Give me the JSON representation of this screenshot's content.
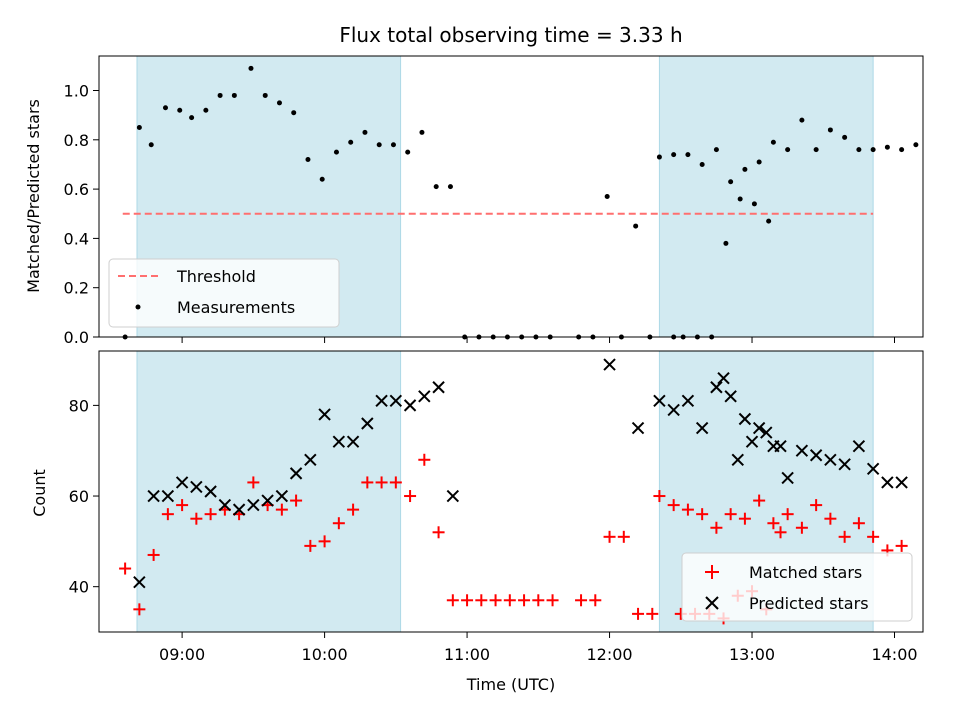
{
  "chart_data": [
    {
      "type": "scatter",
      "title": "Flux total observing time = 3.33 h",
      "xlabel": "",
      "ylabel": "Matched/Predicted stars",
      "ylim": [
        0,
        1.14
      ],
      "xlim": [
        "08:25",
        "14:12"
      ],
      "yticks": [
        "0.0",
        "0.2",
        "0.4",
        "0.6",
        "0.8",
        "1.0"
      ],
      "shaded_intervals": [
        [
          "08:41",
          "10:32"
        ],
        [
          "12:21",
          "13:51"
        ]
      ],
      "shade_color": "#add8e6",
      "threshold": {
        "name": "Threshold",
        "value": 0.5,
        "x_range": [
          "08:35",
          "13:51"
        ],
        "color": "#ff6f6f"
      },
      "series": [
        {
          "name": "Measurements",
          "color": "#000000",
          "points": [
            [
              "08:36",
              0.0
            ],
            [
              "08:42",
              0.85
            ],
            [
              "08:47",
              0.78
            ],
            [
              "08:53",
              0.93
            ],
            [
              "08:59",
              0.92
            ],
            [
              "09:04",
              0.89
            ],
            [
              "09:10",
              0.92
            ],
            [
              "09:16",
              0.98
            ],
            [
              "09:22",
              0.98
            ],
            [
              "09:29",
              1.09
            ],
            [
              "09:35",
              0.98
            ],
            [
              "09:41",
              0.95
            ],
            [
              "09:47",
              0.91
            ],
            [
              "09:53",
              0.72
            ],
            [
              "09:59",
              0.64
            ],
            [
              "10:05",
              0.75
            ],
            [
              "10:11",
              0.79
            ],
            [
              "10:17",
              0.83
            ],
            [
              "10:23",
              0.78
            ],
            [
              "10:29",
              0.78
            ],
            [
              "10:35",
              0.75
            ],
            [
              "10:41",
              0.83
            ],
            [
              "10:47",
              0.61
            ],
            [
              "10:53",
              0.61
            ],
            [
              "10:59",
              0.0
            ],
            [
              "11:05",
              0.0
            ],
            [
              "11:11",
              0.0
            ],
            [
              "11:17",
              0.0
            ],
            [
              "11:23",
              0.0
            ],
            [
              "11:29",
              0.0
            ],
            [
              "11:35",
              0.0
            ],
            [
              "11:47",
              0.0
            ],
            [
              "11:53",
              0.0
            ],
            [
              "11:59",
              0.57
            ],
            [
              "12:05",
              0.0
            ],
            [
              "12:11",
              0.45
            ],
            [
              "12:17",
              0.0
            ],
            [
              "12:27",
              0.0
            ],
            [
              "12:31",
              0.0
            ],
            [
              "12:37",
              0.0
            ],
            [
              "12:43",
              0.0
            ],
            [
              "12:49",
              0.38
            ],
            [
              "12:55",
              0.56
            ],
            [
              "13:01",
              0.54
            ],
            [
              "13:07",
              0.47
            ],
            [
              "12:21",
              0.73
            ],
            [
              "12:27",
              0.74
            ],
            [
              "12:33",
              0.74
            ],
            [
              "12:39",
              0.7
            ],
            [
              "12:45",
              0.76
            ],
            [
              "12:51",
              0.63
            ],
            [
              "12:57",
              0.68
            ],
            [
              "13:03",
              0.71
            ],
            [
              "13:09",
              0.79
            ],
            [
              "13:15",
              0.76
            ],
            [
              "13:21",
              0.88
            ],
            [
              "13:27",
              0.76
            ],
            [
              "13:33",
              0.84
            ],
            [
              "13:39",
              0.81
            ],
            [
              "13:45",
              0.76
            ],
            [
              "13:51",
              0.76
            ],
            [
              "13:57",
              0.77
            ],
            [
              "14:03",
              0.76
            ],
            [
              "14:09",
              0.78
            ]
          ]
        }
      ],
      "legend": {
        "placement": "lower-left"
      }
    },
    {
      "type": "scatter",
      "title": "",
      "xlabel": "Time (UTC)",
      "ylabel": "Count",
      "ylim": [
        30,
        92
      ],
      "xlim": [
        "08:25",
        "14:12"
      ],
      "xticks": [
        "09:00",
        "10:00",
        "11:00",
        "12:00",
        "13:00",
        "14:00"
      ],
      "yticks": [
        "40",
        "60",
        "80"
      ],
      "shaded_intervals": [
        [
          "08:41",
          "10:32"
        ],
        [
          "12:21",
          "13:51"
        ]
      ],
      "series": [
        {
          "name": "Matched stars",
          "marker": "plus",
          "color": "#ff0000",
          "points": [
            [
              "08:36",
              44
            ],
            [
              "08:42",
              35
            ],
            [
              "08:48",
              47
            ],
            [
              "08:54",
              56
            ],
            [
              "09:00",
              58
            ],
            [
              "09:06",
              55
            ],
            [
              "09:12",
              56
            ],
            [
              "09:18",
              57
            ],
            [
              "09:24",
              56
            ],
            [
              "09:30",
              63
            ],
            [
              "09:36",
              58
            ],
            [
              "09:42",
              57
            ],
            [
              "09:48",
              59
            ],
            [
              "09:54",
              49
            ],
            [
              "10:00",
              50
            ],
            [
              "10:06",
              54
            ],
            [
              "10:12",
              57
            ],
            [
              "10:18",
              63
            ],
            [
              "10:24",
              63
            ],
            [
              "10:30",
              63
            ],
            [
              "10:36",
              60
            ],
            [
              "10:42",
              68
            ],
            [
              "10:48",
              52
            ],
            [
              "10:54",
              37
            ],
            [
              "11:00",
              37
            ],
            [
              "11:06",
              37
            ],
            [
              "11:12",
              37
            ],
            [
              "11:18",
              37
            ],
            [
              "11:24",
              37
            ],
            [
              "11:30",
              37
            ],
            [
              "11:36",
              37
            ],
            [
              "11:48",
              37
            ],
            [
              "11:54",
              37
            ],
            [
              "12:00",
              51
            ],
            [
              "12:06",
              51
            ],
            [
              "12:12",
              34
            ],
            [
              "12:18",
              34
            ],
            [
              "12:30",
              34
            ],
            [
              "12:36",
              34
            ],
            [
              "12:42",
              34
            ],
            [
              "12:48",
              33
            ],
            [
              "12:54",
              38
            ],
            [
              "13:00",
              39
            ],
            [
              "13:06",
              35
            ],
            [
              "13:12",
              52
            ],
            [
              "12:21",
              60
            ],
            [
              "12:27",
              58
            ],
            [
              "12:33",
              57
            ],
            [
              "12:39",
              56
            ],
            [
              "12:45",
              53
            ],
            [
              "12:51",
              56
            ],
            [
              "12:57",
              55
            ],
            [
              "13:03",
              59
            ],
            [
              "13:09",
              54
            ],
            [
              "13:15",
              56
            ],
            [
              "13:21",
              53
            ],
            [
              "13:27",
              58
            ],
            [
              "13:33",
              55
            ],
            [
              "13:39",
              51
            ],
            [
              "13:45",
              54
            ],
            [
              "13:51",
              51
            ],
            [
              "13:57",
              48
            ],
            [
              "14:03",
              49
            ]
          ]
        },
        {
          "name": "Predicted stars",
          "marker": "x",
          "color": "#000000",
          "points": [
            [
              "08:42",
              41
            ],
            [
              "08:48",
              60
            ],
            [
              "08:54",
              60
            ],
            [
              "09:00",
              63
            ],
            [
              "09:06",
              62
            ],
            [
              "09:12",
              61
            ],
            [
              "09:18",
              58
            ],
            [
              "09:24",
              57
            ],
            [
              "09:30",
              58
            ],
            [
              "09:36",
              59
            ],
            [
              "09:42",
              60
            ],
            [
              "09:48",
              65
            ],
            [
              "09:54",
              68
            ],
            [
              "10:00",
              78
            ],
            [
              "10:06",
              72
            ],
            [
              "10:12",
              72
            ],
            [
              "10:18",
              76
            ],
            [
              "10:24",
              81
            ],
            [
              "10:30",
              81
            ],
            [
              "10:36",
              80
            ],
            [
              "10:42",
              82
            ],
            [
              "10:48",
              84
            ],
            [
              "10:54",
              60
            ],
            [
              "12:00",
              89
            ],
            [
              "12:12",
              75
            ],
            [
              "12:48",
              86
            ],
            [
              "12:54",
              68
            ],
            [
              "13:00",
              72
            ],
            [
              "13:06",
              74
            ],
            [
              "13:12",
              71
            ],
            [
              "12:21",
              81
            ],
            [
              "12:27",
              79
            ],
            [
              "12:33",
              81
            ],
            [
              "12:39",
              75
            ],
            [
              "12:45",
              84
            ],
            [
              "12:51",
              82
            ],
            [
              "12:57",
              77
            ],
            [
              "13:03",
              75
            ],
            [
              "13:09",
              71
            ],
            [
              "13:15",
              64
            ],
            [
              "13:21",
              70
            ],
            [
              "13:27",
              69
            ],
            [
              "13:33",
              68
            ],
            [
              "13:39",
              67
            ],
            [
              "13:45",
              71
            ],
            [
              "13:51",
              66
            ],
            [
              "13:57",
              63
            ],
            [
              "14:03",
              63
            ]
          ]
        }
      ],
      "legend": {
        "placement": "lower-right"
      }
    }
  ]
}
